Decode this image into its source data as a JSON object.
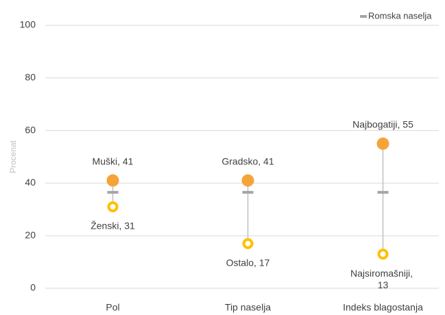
{
  "chart_data": {
    "type": "dot",
    "categories": [
      "Pol",
      "Tip naselja",
      "Indeks blagostanja"
    ],
    "y_label": "Procenat",
    "ylim": [
      0,
      100
    ],
    "yticks": [
      0,
      20,
      40,
      60,
      80,
      100
    ],
    "grid": true,
    "legend": "top-right",
    "series": [
      {
        "name": "Romska naselja",
        "color": "#a5a5a5",
        "values": [
          36.5,
          36.5,
          36.5
        ]
      },
      {
        "color": "#f5a43a",
        "values": [
          41,
          41,
          55
        ],
        "value_labels": [
          "Muški, 41",
          "Gradsko, 41",
          "Najbogatiji, 55"
        ]
      },
      {
        "color": "#ffc000",
        "values": [
          31,
          17,
          13
        ],
        "value_labels": [
          "Ženski, 31",
          "Ostalo, 17",
          "Najsiromašniji, 13"
        ]
      }
    ]
  }
}
